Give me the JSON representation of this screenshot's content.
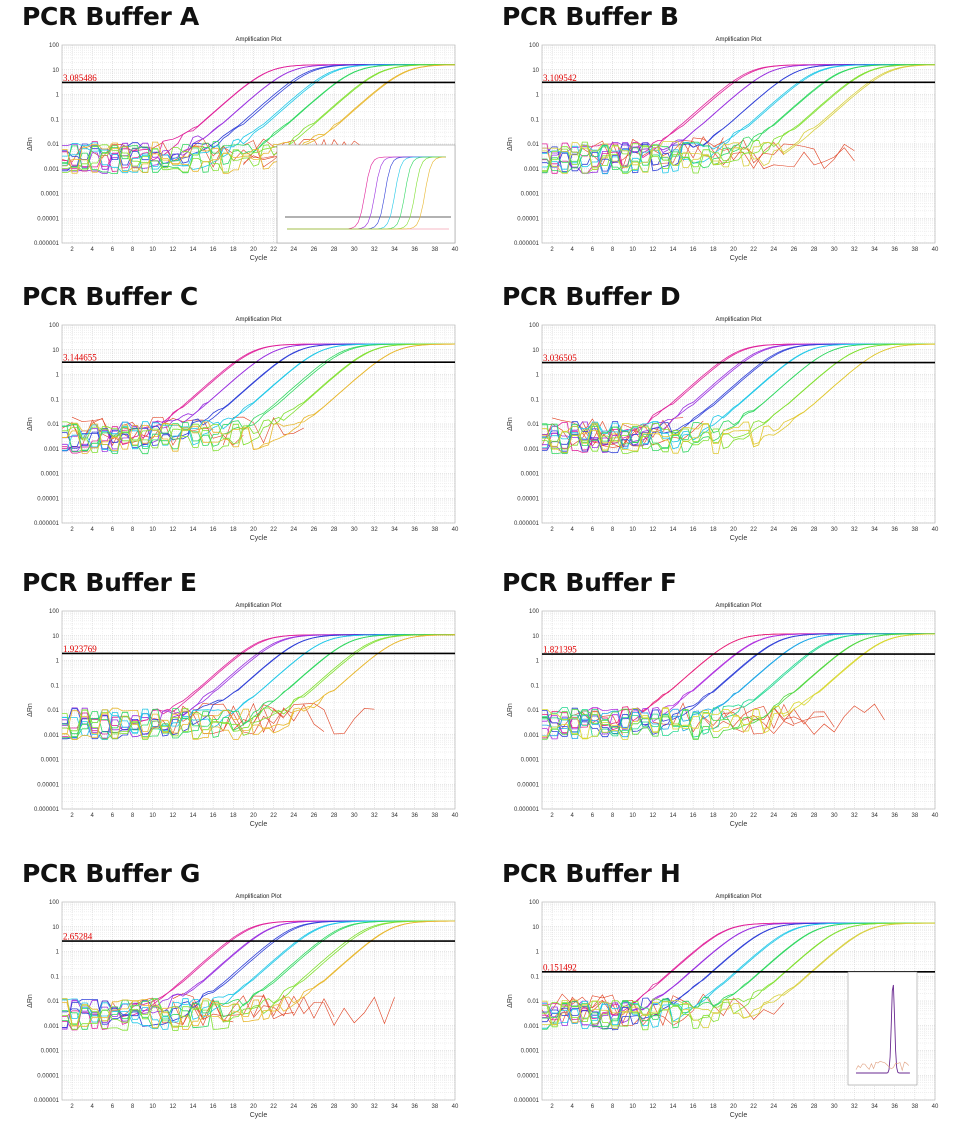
{
  "chart_data": [
    {
      "type": "line",
      "panel_title": "PCR Buffer A",
      "title": "Amplification Plot",
      "xlabel": "Cycle",
      "ylabel": "ΔRn",
      "yscale": "log",
      "ylim": [
        1e-06,
        100
      ],
      "xlim": [
        1,
        40
      ],
      "threshold": 3.085486,
      "threshold_label": "3.085486",
      "plateau": 16,
      "inset": "amplification-linear",
      "series": [
        {
          "color": "#e0209a",
          "ct": 19.5
        },
        {
          "color": "#9a30e0",
          "ct": 21.6
        },
        {
          "color": "#3040d8",
          "ct": 23.8
        },
        {
          "color": "#20c8e8",
          "ct": 26.1
        },
        {
          "color": "#30d860",
          "ct": 28.4
        },
        {
          "color": "#80e030",
          "ct": 30.9
        },
        {
          "color": "#e8b830",
          "ct": 33.3
        }
      ]
    },
    {
      "type": "line",
      "panel_title": "PCR Buffer B",
      "title": "Amplification Plot",
      "xlabel": "Cycle",
      "ylabel": "ΔRn",
      "yscale": "log",
      "ylim": [
        1e-06,
        100
      ],
      "xlim": [
        1,
        40
      ],
      "threshold": 3.109542,
      "threshold_label": "3.109542",
      "plateau": 16,
      "series": [
        {
          "color": "#e0209a",
          "ct": 20.0
        },
        {
          "color": "#9a30e0",
          "ct": 22.0
        },
        {
          "color": "#3040d8",
          "ct": 24.3
        },
        {
          "color": "#20c8e8",
          "ct": 26.5
        },
        {
          "color": "#30d860",
          "ct": 29.0
        },
        {
          "color": "#80e030",
          "ct": 31.5
        },
        {
          "color": "#d8d040",
          "ct": 33.5
        }
      ]
    },
    {
      "type": "line",
      "panel_title": "PCR Buffer C",
      "title": "Amplification Plot",
      "xlabel": "Cycle",
      "ylabel": "ΔRn",
      "yscale": "log",
      "ylim": [
        1e-06,
        100
      ],
      "xlim": [
        1,
        40
      ],
      "threshold": 3.144655,
      "threshold_label": "3.144655",
      "plateau": 17,
      "series": [
        {
          "color": "#e0209a",
          "ct": 18.2
        },
        {
          "color": "#9a30e0",
          "ct": 20.3
        },
        {
          "color": "#3040d8",
          "ct": 22.4
        },
        {
          "color": "#20c8e8",
          "ct": 24.8
        },
        {
          "color": "#30d860",
          "ct": 27.2
        },
        {
          "color": "#80e030",
          "ct": 29.8
        },
        {
          "color": "#e8b830",
          "ct": 32.2
        }
      ]
    },
    {
      "type": "line",
      "panel_title": "PCR Buffer D",
      "title": "Amplification Plot",
      "xlabel": "Cycle",
      "ylabel": "ΔRn",
      "yscale": "log",
      "ylim": [
        1e-06,
        100
      ],
      "xlim": [
        1,
        40
      ],
      "threshold": 3.036505,
      "threshold_label": "3.036505",
      "plateau": 17,
      "series": [
        {
          "color": "#e0209a",
          "ct": 18.8
        },
        {
          "color": "#9a30e0",
          "ct": 20.8
        },
        {
          "color": "#3040d8",
          "ct": 23.0
        },
        {
          "color": "#20c8e8",
          "ct": 25.3
        },
        {
          "color": "#30d860",
          "ct": 27.8
        },
        {
          "color": "#80e030",
          "ct": 30.3
        },
        {
          "color": "#e0c830",
          "ct": 33.0
        }
      ]
    },
    {
      "type": "line",
      "panel_title": "PCR Buffer E",
      "title": "Amplification Plot",
      "xlabel": "Cycle",
      "ylabel": "ΔRn",
      "yscale": "log",
      "ylim": [
        1e-06,
        100
      ],
      "xlim": [
        1,
        40
      ],
      "threshold": 1.923769,
      "threshold_label": "1.923769",
      "plateau": 11,
      "series": [
        {
          "color": "#e0209a",
          "ct": 18.7
        },
        {
          "color": "#9a30e0",
          "ct": 20.6
        },
        {
          "color": "#3040d8",
          "ct": 22.8
        },
        {
          "color": "#20c8e8",
          "ct": 25.0
        },
        {
          "color": "#30d860",
          "ct": 27.5
        },
        {
          "color": "#80e030",
          "ct": 30.0
        },
        {
          "color": "#e8b830",
          "ct": 32.5
        }
      ]
    },
    {
      "type": "line",
      "panel_title": "PCR Buffer F",
      "title": "Amplification Plot",
      "xlabel": "Cycle",
      "ylabel": "ΔRn",
      "yscale": "log",
      "ylim": [
        1e-06,
        100
      ],
      "xlim": [
        1,
        40
      ],
      "threshold": 1.821395,
      "threshold_label": "1.821395",
      "plateau": 12,
      "series": [
        {
          "color": "#e8207a",
          "ct": 18.0
        },
        {
          "color": "#b030e0",
          "ct": 20.2
        },
        {
          "color": "#3040d8",
          "ct": 22.4
        },
        {
          "color": "#20a8e8",
          "ct": 25.0
        },
        {
          "color": "#20d890",
          "ct": 27.5
        },
        {
          "color": "#50d840",
          "ct": 30.5
        },
        {
          "color": "#d8d830",
          "ct": 33.0
        }
      ]
    },
    {
      "type": "line",
      "panel_title": "PCR Buffer G",
      "title": "Amplification Plot",
      "xlabel": "Cycle",
      "ylabel": "ΔRn",
      "yscale": "log",
      "ylim": [
        1e-06,
        100
      ],
      "xlim": [
        1,
        40
      ],
      "threshold": 2.65284,
      "threshold_label": "2.65284",
      "plateau": 17,
      "series": [
        {
          "color": "#e0209a",
          "ct": 17.6
        },
        {
          "color": "#9a30e0",
          "ct": 19.8
        },
        {
          "color": "#3040d8",
          "ct": 22.0
        },
        {
          "color": "#20c8e8",
          "ct": 24.3
        },
        {
          "color": "#30d860",
          "ct": 26.8
        },
        {
          "color": "#80e030",
          "ct": 29.4
        },
        {
          "color": "#e8b830",
          "ct": 31.8
        }
      ]
    },
    {
      "type": "line",
      "panel_title": "PCR Buffer H",
      "title": "Amplification Plot",
      "xlabel": "Cycle",
      "ylabel": "ΔRn",
      "yscale": "log",
      "ylim": [
        1e-06,
        100
      ],
      "xlim": [
        1,
        40
      ],
      "threshold": 0.151492,
      "threshold_label": "0.151492",
      "plateau": 14,
      "inset": "melt-curve",
      "series": [
        {
          "color": "#e0209a",
          "ct": 13.7
        },
        {
          "color": "#9a30e0",
          "ct": 15.8
        },
        {
          "color": "#3040d8",
          "ct": 18.0
        },
        {
          "color": "#20c8e8",
          "ct": 20.3
        },
        {
          "color": "#30d860",
          "ct": 22.7
        },
        {
          "color": "#80e030",
          "ct": 25.3
        },
        {
          "color": "#d8d040",
          "ct": 27.7
        }
      ]
    }
  ],
  "noise_color": "#e04020",
  "y_tick_labels": [
    "100",
    "10",
    "1",
    "0.1",
    "0.01",
    "0.001",
    "0.0001",
    "0.00001",
    "0.000001"
  ],
  "x_tick_labels": [
    "2",
    "4",
    "6",
    "8",
    "10",
    "12",
    "14",
    "16",
    "18",
    "20",
    "22",
    "24",
    "26",
    "28",
    "30",
    "32",
    "34",
    "36",
    "38",
    "40"
  ]
}
